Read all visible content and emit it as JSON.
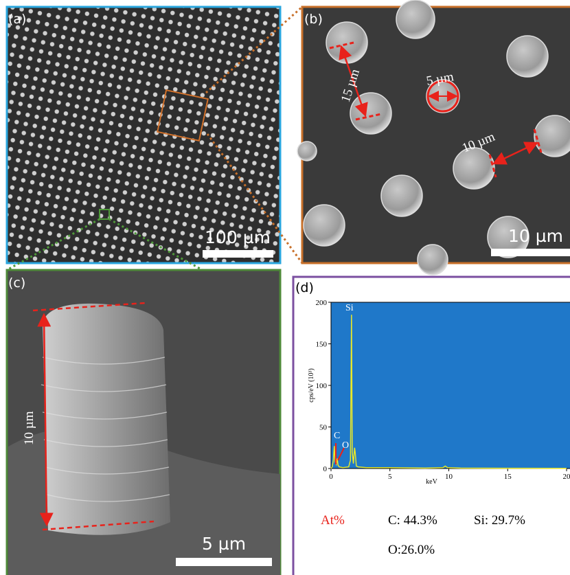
{
  "panels": {
    "a": {
      "label": "(a)",
      "scale_bar": "100 µm"
    },
    "b": {
      "label": "(b)",
      "scale_bar": "10 µm",
      "annotations": [
        "15 µm",
        "5 µm",
        "10 µm"
      ]
    },
    "c": {
      "label": "(c)",
      "scale_bar": "5 µm",
      "annotations": [
        "10 µm"
      ]
    },
    "d": {
      "label": "(d)",
      "composition": {
        "heading": "At%",
        "items": [
          "C: 44.3%",
          "Si: 29.7%",
          "O:26.0%"
        ]
      }
    }
  },
  "chart_data": {
    "type": "line",
    "xlabel": "keV",
    "ylabel": "cps/eV (10³)",
    "peak_labels": [
      "Si",
      "C",
      "O"
    ],
    "x": [
      0,
      0.1,
      0.2,
      0.28,
      0.35,
      0.45,
      0.52,
      0.6,
      0.7,
      1.0,
      1.5,
      1.65,
      1.74,
      1.8,
      1.9,
      2.0,
      2.05,
      2.15,
      2.3,
      3,
      5,
      8,
      9.5,
      9.7,
      9.9,
      11,
      15,
      20
    ],
    "values": [
      0,
      2,
      10,
      27,
      8,
      5,
      12,
      4,
      2,
      1,
      2,
      10,
      185,
      20,
      6,
      25,
      20,
      3,
      2,
      1,
      1,
      0.5,
      1,
      3,
      1,
      0.5,
      0.3,
      0.2
    ],
    "color": "#e8e82a",
    "xlim": [
      0,
      20
    ],
    "ylim": [
      0,
      200
    ],
    "xticks": [
      0,
      5,
      10,
      15,
      20
    ],
    "yticks": [
      0,
      50,
      100,
      150,
      200
    ]
  }
}
